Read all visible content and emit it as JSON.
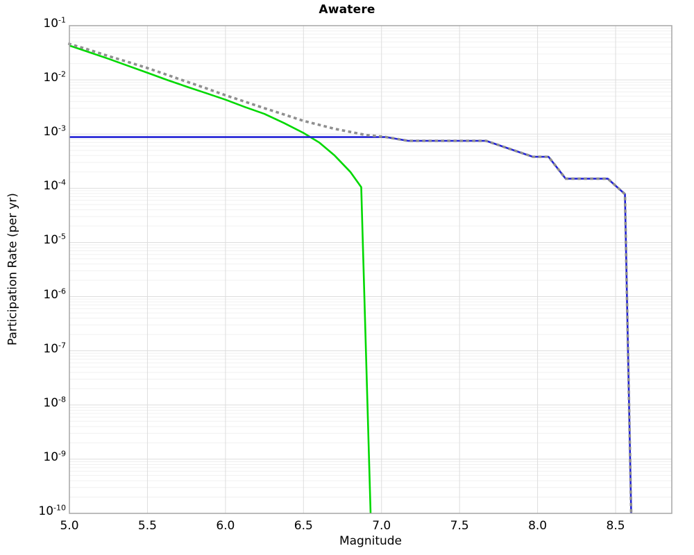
{
  "chart_data": {
    "type": "line",
    "title": "Awatere",
    "xlabel": "Magnitude",
    "ylabel": "Participation Rate (per yr)",
    "x_ticks": [
      5.0,
      5.5,
      6.0,
      6.5,
      7.0,
      7.5,
      8.0,
      8.5
    ],
    "xlim": [
      5.0,
      8.86
    ],
    "y_tick_exponents": [
      -1,
      -2,
      -3,
      -4,
      -5,
      -6,
      -7,
      -8,
      -9,
      -10
    ],
    "ylim_exponents": [
      -10,
      -1
    ],
    "yscale": "log",
    "grid": true,
    "legend": "none",
    "colors": {
      "background": "#ffffff",
      "plot_border": "#a6a6a6",
      "grid_major": "#dddddd",
      "grid_minor": "#f0f0f0",
      "text": "#000000"
    },
    "series": [
      {
        "name": "green-solid-line",
        "color": "#00d800",
        "style": "solid",
        "width": 2.6,
        "points": [
          [
            5.0,
            0.043
          ],
          [
            5.125,
            0.0325
          ],
          [
            5.25,
            0.0245
          ],
          [
            5.375,
            0.0182
          ],
          [
            5.5,
            0.0135
          ],
          [
            5.625,
            0.01
          ],
          [
            5.75,
            0.0075
          ],
          [
            5.875,
            0.0057
          ],
          [
            6.0,
            0.0043
          ],
          [
            6.125,
            0.00315
          ],
          [
            6.25,
            0.00235
          ],
          [
            6.375,
            0.0016
          ],
          [
            6.5,
            0.00105
          ],
          [
            6.6,
            0.0007
          ],
          [
            6.7,
            0.0004
          ],
          [
            6.8,
            0.0002
          ],
          [
            6.87,
            0.000105
          ],
          [
            6.93,
            1e-10
          ]
        ]
      },
      {
        "name": "blue-solid-line",
        "color": "#2121d6",
        "style": "solid",
        "width": 2.6,
        "points": [
          [
            5.0,
            0.00088
          ],
          [
            7.03,
            0.00088
          ],
          [
            7.17,
            0.00075
          ],
          [
            7.67,
            0.00075
          ],
          [
            7.97,
            0.00038
          ],
          [
            8.07,
            0.00038
          ],
          [
            8.18,
            0.00015
          ],
          [
            8.45,
            0.00015
          ],
          [
            8.56,
            7.8e-05
          ],
          [
            8.6,
            1e-10
          ]
        ]
      },
      {
        "name": "gray-dotted-line",
        "color": "#8f8f8f",
        "style": "dotted",
        "width": 3.6,
        "points": [
          [
            5.0,
            0.046
          ],
          [
            5.125,
            0.036
          ],
          [
            5.25,
            0.0275
          ],
          [
            5.375,
            0.0214
          ],
          [
            5.5,
            0.0165
          ],
          [
            5.625,
            0.0124
          ],
          [
            5.75,
            0.0093
          ],
          [
            5.875,
            0.007
          ],
          [
            6.0,
            0.0052
          ],
          [
            6.125,
            0.00395
          ],
          [
            6.25,
            0.003
          ],
          [
            6.375,
            0.0023
          ],
          [
            6.5,
            0.00175
          ],
          [
            6.7,
            0.00125
          ],
          [
            6.9,
            0.00096
          ],
          [
            7.03,
            0.00088
          ],
          [
            7.17,
            0.00075
          ],
          [
            7.67,
            0.00075
          ],
          [
            7.97,
            0.00038
          ],
          [
            8.07,
            0.00038
          ],
          [
            8.18,
            0.00015
          ],
          [
            8.45,
            0.00015
          ],
          [
            8.56,
            7.8e-05
          ],
          [
            8.6,
            1e-10
          ]
        ]
      }
    ]
  }
}
